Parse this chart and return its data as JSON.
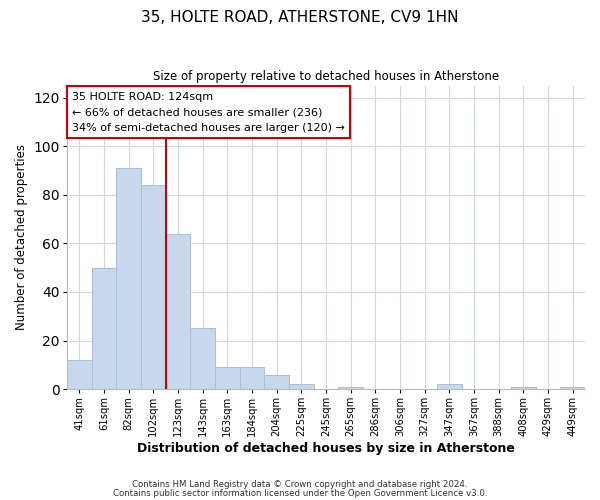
{
  "title": "35, HOLTE ROAD, ATHERSTONE, CV9 1HN",
  "subtitle": "Size of property relative to detached houses in Atherstone",
  "xlabel": "Distribution of detached houses by size in Atherstone",
  "ylabel": "Number of detached properties",
  "bar_labels": [
    "41sqm",
    "61sqm",
    "82sqm",
    "102sqm",
    "123sqm",
    "143sqm",
    "163sqm",
    "184sqm",
    "204sqm",
    "225sqm",
    "245sqm",
    "265sqm",
    "286sqm",
    "306sqm",
    "327sqm",
    "347sqm",
    "367sqm",
    "388sqm",
    "408sqm",
    "429sqm",
    "449sqm"
  ],
  "bar_values": [
    12,
    50,
    91,
    84,
    64,
    25,
    9,
    9,
    6,
    2,
    0,
    1,
    0,
    0,
    0,
    2,
    0,
    0,
    1,
    0,
    1
  ],
  "bar_color": "#c8d8ec",
  "bar_edge_color": "#aabfd8",
  "ylim": [
    0,
    125
  ],
  "yticks": [
    0,
    20,
    40,
    60,
    80,
    100,
    120
  ],
  "vline_index": 3.5,
  "vline_color": "#cc0000",
  "annotation_title": "35 HOLTE ROAD: 124sqm",
  "annotation_line1": "← 66% of detached houses are smaller (236)",
  "annotation_line2": "34% of semi-detached houses are larger (120) →",
  "annotation_box_color": "#ffffff",
  "annotation_box_edge": "#cc0000",
  "footer1": "Contains HM Land Registry data © Crown copyright and database right 2024.",
  "footer2": "Contains public sector information licensed under the Open Government Licence v3.0.",
  "background_color": "#ffffff",
  "grid_color": "#d0d8e8"
}
